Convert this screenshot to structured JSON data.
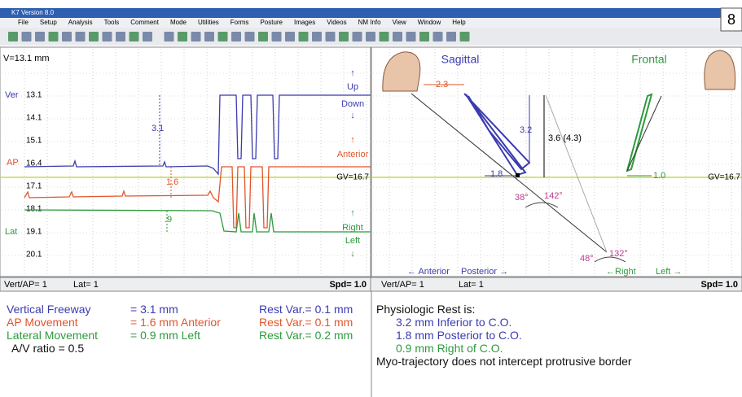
{
  "window": {
    "title": "K7 Version 8.0",
    "menu": [
      "File",
      "Setup",
      "Analysis",
      "Tools",
      "Comment",
      "Mode",
      "Utilities",
      "Forms",
      "Posture",
      "Images",
      "Videos",
      "NM Info",
      "View",
      "Window",
      "Help"
    ]
  },
  "badge": "8",
  "left_panel": {
    "scale": "V=13.1 mm",
    "channels": [
      "Ver",
      "AP",
      "Lat"
    ],
    "axis_labels": [
      "13.1",
      "14.1",
      "15.1",
      "16.4",
      "17.1",
      "18.1",
      "19.1",
      "20.1"
    ],
    "directions": [
      "Up",
      "Down",
      "Anterior",
      "Right",
      "Left"
    ],
    "gv": "GV=16.7",
    "annotations": [
      "3.1",
      "1.6",
      ".9"
    ],
    "status": [
      "Vert/AP= 1",
      "Lat= 1",
      "Spd= 1.0"
    ]
  },
  "right_panel": {
    "views": [
      "Sagittal",
      "Frontal"
    ],
    "annotations": [
      "2.3",
      "3.2",
      "3.6 (4.3)",
      "1.8",
      "1.0",
      "38°",
      "142°",
      "48°",
      "132°"
    ],
    "gv": "GV=16.7",
    "directions": [
      "← Anterior",
      "Posterior →",
      "←Right",
      "Left →"
    ],
    "status": [
      "Vert/AP= 1",
      "Lat= 1",
      "Spd= 1.0"
    ]
  },
  "results": {
    "rows": [
      [
        "Vertical Freeway",
        "= 3.1 mm",
        "Rest Var.= 0.1 mm"
      ],
      [
        "AP Movement",
        "= 1.6 mm Anterior",
        "Rest Var.= 0.1 mm"
      ],
      [
        "Lateral Movement",
        "= 0.9 mm Left",
        "Rest Var.= 0.2 mm"
      ]
    ],
    "ratio": "A/V ratio = 0.5",
    "rest_title": "Physiologic Rest is:",
    "rest": [
      "3.2 mm Inferior to C.O.",
      "1.8 mm Posterior to C.O.",
      "0.9 mm Right of C.O."
    ],
    "note": "Myo-trajectory does not intercept protrusive border"
  }
}
